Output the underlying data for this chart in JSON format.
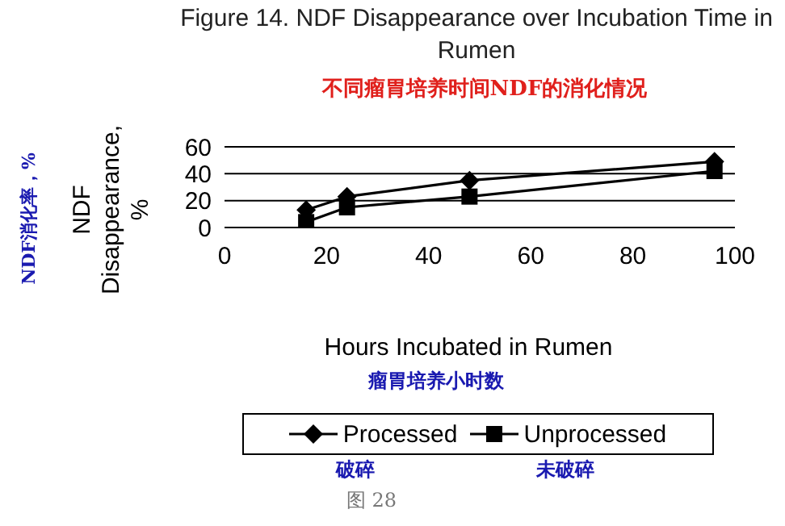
{
  "chart_data": {
    "type": "line",
    "title": "Figure 14. NDF Disappearance over Incubation Time in Rumen",
    "subtitle": "不同瘤胃培养时间NDF的消化情况",
    "xlabel": "Hours Incubated in Rumen",
    "ylabel": "NDF Disappearance, %",
    "x": [
      16,
      24,
      48,
      96
    ],
    "series": [
      {
        "name": "Processed",
        "color": "#000000",
        "marker": "diamond",
        "values": [
          13,
          23,
          35,
          49
        ]
      },
      {
        "name": "Unprocessed",
        "color": "#000000",
        "marker": "square",
        "values": [
          4,
          15,
          23,
          42
        ]
      }
    ],
    "xlim": [
      0,
      100
    ],
    "xticks": [
      0,
      20,
      40,
      60,
      80,
      100
    ],
    "ylim": [
      0,
      60
    ],
    "yticks": [
      0,
      20,
      40,
      60
    ],
    "grid": "y",
    "legend": "bottom",
    "annotations": [
      "NDF消化率，%",
      "瘤胃培养小时数",
      "破碎",
      "未破碎",
      "图 28"
    ]
  }
}
